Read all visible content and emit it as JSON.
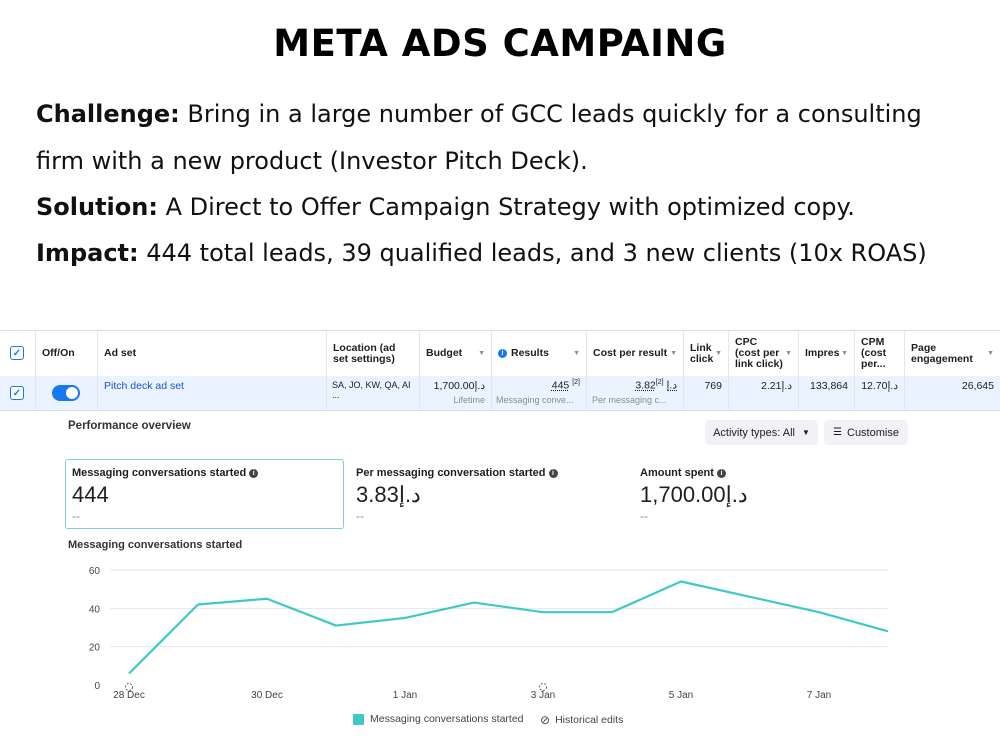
{
  "title": "META ADS CAMPAING",
  "paragraphs": [
    {
      "label": "Challenge:",
      "text": " Bring in a large number of GCC leads quickly for a consulting"
    },
    {
      "label": "",
      "text": "firm with a new product (Investor Pitch Deck)."
    },
    {
      "label": "Solution:",
      "text": " A Direct to Offer Campaign Strategy with optimized copy."
    },
    {
      "label": "Impact:",
      "text": " 444 total leads, 39 qualified leads, and 3 new clients (10x ROAS)"
    }
  ],
  "table": {
    "headers": {
      "offon": "Off/On",
      "adset": "Ad set",
      "location": "Location (ad set settings)",
      "budget": "Budget",
      "results": "Results",
      "cpr": "Cost per result",
      "linkclick": "Link click",
      "cpc": "CPC (cost per link click)",
      "impr": "Impres",
      "cpm": "CPM (cost per...",
      "page": "Page engagement"
    },
    "row": {
      "adset": "Pitch deck ad set",
      "location": "SA, JO, KW, QA, AI ...",
      "budget": "1,700.00د.إ",
      "budget_sub": "Lifetime",
      "results": "445",
      "results_sup": "[2]",
      "results_sub": "Messaging conve...",
      "cpr": "3.82د.إ",
      "cpr_sup": "[2]",
      "cpr_sub": "Per messaging c...",
      "linkclick": "769",
      "cpc": "2.21د.إ",
      "impr": "133,864",
      "cpm": "12.70د.إ",
      "page": "26,645"
    }
  },
  "performance": {
    "title": "Performance overview",
    "activity_button": "Activity types: All",
    "customise_button": "Customise",
    "metrics": [
      {
        "label": "Messaging conversations started",
        "value": "444",
        "dash": "--"
      },
      {
        "label": "Per messaging conversation started",
        "value": "3.83د.إ",
        "dash": "--"
      },
      {
        "label": "Amount spent",
        "value": "1,700.00د.إ",
        "dash": "--"
      }
    ]
  },
  "chart_data": {
    "type": "line",
    "title": "Messaging conversations started",
    "x": [
      "28 Dec",
      "29 Dec",
      "30 Dec",
      "31 Dec",
      "1 Jan",
      "2 Jan",
      "3 Jan",
      "4 Jan",
      "5 Jan",
      "6 Jan",
      "7 Jan",
      "8 Jan"
    ],
    "x_tick_labels": [
      "28 Dec",
      "30 Dec",
      "1 Jan",
      "3 Jan",
      "5 Jan",
      "7 Jan"
    ],
    "y_ticks": [
      0,
      20,
      40,
      60
    ],
    "ylim": [
      0,
      60
    ],
    "series": [
      {
        "name": "Messaging conversations started",
        "color": "#3ec9c7",
        "values": [
          6,
          42,
          45,
          31,
          35,
          43,
          38,
          38,
          54,
          46,
          38,
          28
        ]
      }
    ],
    "legend": [
      "Messaging conversations started",
      "Historical edits"
    ],
    "historical_edit_dates": [
      "28 Dec",
      "3 Jan"
    ]
  }
}
